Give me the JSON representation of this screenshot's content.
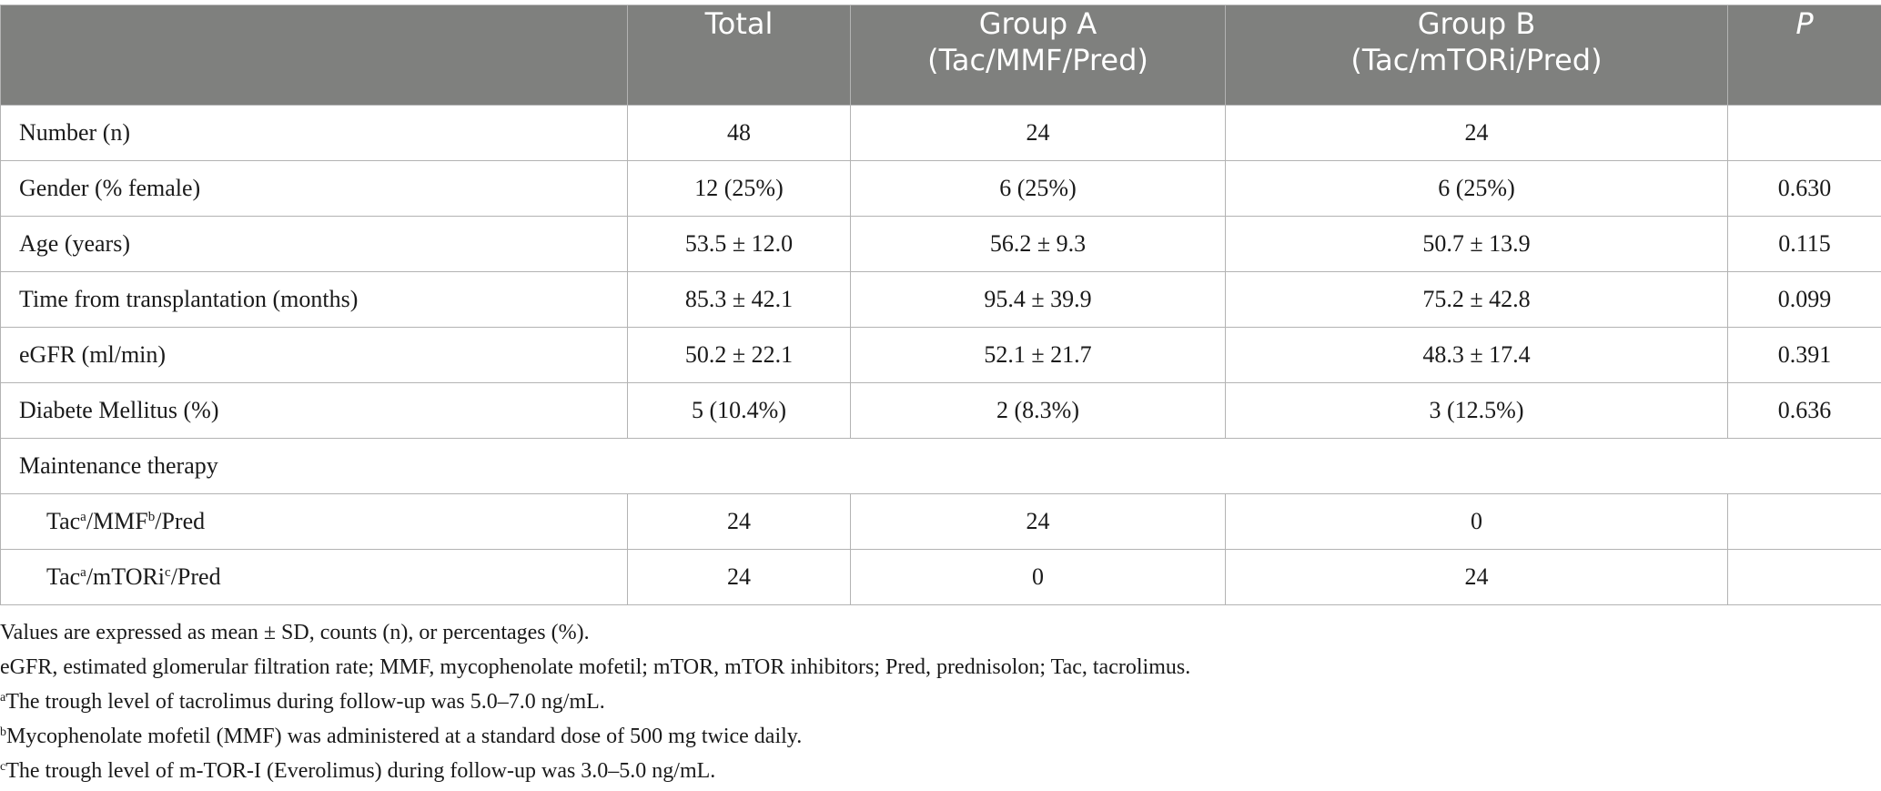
{
  "columns": [
    "",
    "Total",
    "Group A",
    "(Tac/MMF/Pred)",
    "Group B",
    "(Tac/mTORi/Pred)",
    "P"
  ],
  "rows": [
    {
      "label": "Number (n)",
      "total": "48",
      "group_a": "24",
      "group_b": "24",
      "p": ""
    },
    {
      "label": "Gender (% female)",
      "total": "12 (25%)",
      "group_a": "6 (25%)",
      "group_b": "6 (25%)",
      "p": "0.630"
    },
    {
      "label": "Age (years)",
      "total": "53.5 ± 12.0",
      "group_a": "56.2 ± 9.3",
      "group_b": "50.7 ± 13.9",
      "p": "0.115"
    },
    {
      "label": "Time from transplantation (months)",
      "total": "85.3 ± 42.1",
      "group_a": "95.4 ± 39.9",
      "group_b": "75.2 ± 42.8",
      "p": "0.099"
    },
    {
      "label": "eGFR (ml/min)",
      "total": "50.2 ± 22.1",
      "group_a": "52.1 ± 21.7",
      "group_b": "48.3 ± 17.4",
      "p": "0.391"
    },
    {
      "label": "Diabete Mellitus (%)",
      "total": "5 (10.4%)",
      "group_a": "2 (8.3%)",
      "group_b": "3 (12.5%)",
      "p": "0.636"
    }
  ],
  "section_label": "Maintenance therapy",
  "therapy_rows": [
    {
      "part1": "Tac",
      "mark1": "a",
      "part2": "/MMF",
      "mark2": "b",
      "part3": "/Pred",
      "total": "24",
      "group_a": "24",
      "group_b": "0",
      "p": ""
    },
    {
      "part1": "Tac",
      "mark1": "a",
      "part2": "/mTORi",
      "mark2": "c",
      "part3": "/Pred",
      "total": "24",
      "group_a": "0",
      "group_b": "24",
      "p": ""
    }
  ],
  "notes": [
    {
      "mark": "",
      "text": "Values are expressed as mean ± SD, counts (n), or percentages (%)."
    },
    {
      "mark": "",
      "text": "eGFR, estimated glomerular filtration rate; MMF, mycophenolate mofetil; mTOR, mTOR inhibitors; Pred, prednisolon; Tac, tacrolimus."
    },
    {
      "mark": "a",
      "text": "The trough level of tacrolimus during follow-up was 5.0–7.0 ng/mL."
    },
    {
      "mark": "b",
      "text": "Mycophenolate mofetil (MMF) was administered at a standard dose of 500 mg twice daily."
    },
    {
      "mark": "c",
      "text": "The trough level of m-TOR-I (Everolimus) during follow-up was 3.0–5.0 ng/mL."
    }
  ]
}
